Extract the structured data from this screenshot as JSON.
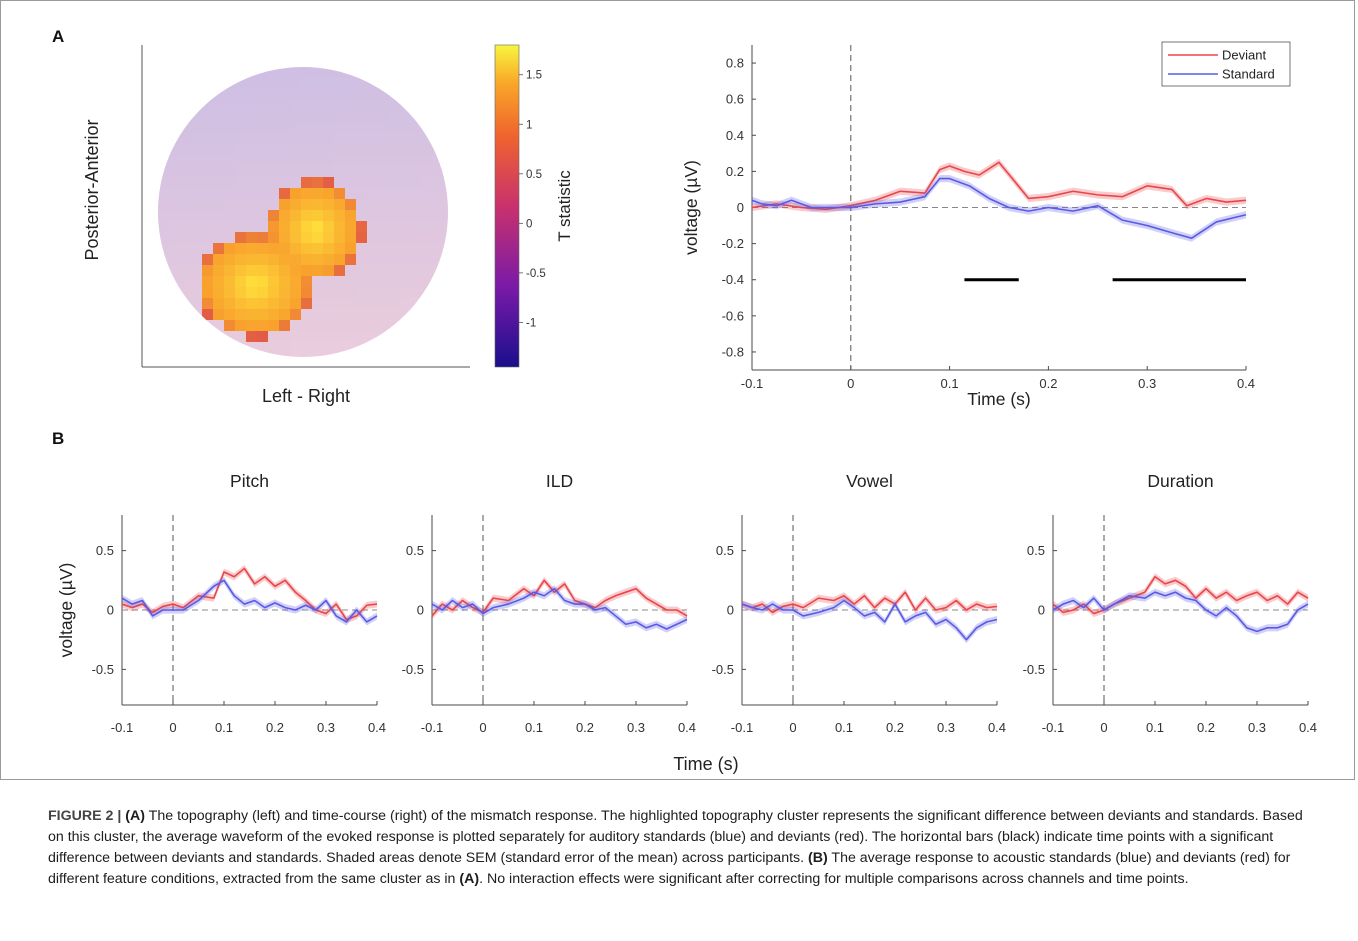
{
  "panelA": {
    "label": "A",
    "topography": {
      "ylabel": "Posterior-Anterior",
      "xlabel": "Left - Right",
      "colorbar_label": "T statistic",
      "colorbar_ticks": [
        "1.5",
        "1",
        "0.5",
        "0",
        "-0.5",
        "-1"
      ],
      "colorbar_tick_values": [
        1.5,
        1,
        0.5,
        0,
        -0.5,
        -1
      ],
      "colorbar_range": [
        -1.45,
        1.8
      ]
    }
  },
  "panelB": {
    "label": "B",
    "shared_xlabel": "Time (s)"
  },
  "chart_data": [
    {
      "type": "line",
      "panel": "A",
      "xlabel": "Time (s)",
      "ylabel": "voltage (µV)",
      "xlim": [
        -0.1,
        0.4
      ],
      "ylim": [
        -0.9,
        0.9
      ],
      "xticks": [
        "-0.1",
        "0",
        "0.1",
        "0.2",
        "0.3",
        "0.4"
      ],
      "yticks": [
        "0.8",
        "0.6",
        "0.4",
        "0.2",
        "0",
        "-0.2",
        "-0.4",
        "-0.6",
        "-0.8"
      ],
      "legend": "top-right",
      "stimulus_onset": 0,
      "significance_bars": [
        [
          0.115,
          0.17
        ],
        [
          0.265,
          0.4
        ]
      ],
      "significance_bar_y": -0.4,
      "series": [
        {
          "name": "Deviant",
          "color": "#e8464a",
          "sem": 0.02,
          "x": [
            -0.1,
            -0.075,
            -0.05,
            -0.025,
            0,
            0.025,
            0.05,
            0.075,
            0.09,
            0.1,
            0.115,
            0.13,
            0.15,
            0.165,
            0.18,
            0.2,
            0.225,
            0.25,
            0.275,
            0.3,
            0.325,
            0.34,
            0.36,
            0.38,
            0.4
          ],
          "y": [
            0.0,
            0.02,
            0.0,
            -0.01,
            0.01,
            0.04,
            0.09,
            0.08,
            0.21,
            0.23,
            0.2,
            0.18,
            0.25,
            0.15,
            0.05,
            0.06,
            0.09,
            0.07,
            0.06,
            0.12,
            0.1,
            0.01,
            0.05,
            0.03,
            0.04
          ]
        },
        {
          "name": "Standard",
          "color": "#5a5ae6",
          "sem": 0.02,
          "x": [
            -0.1,
            -0.09,
            -0.075,
            -0.06,
            -0.04,
            -0.025,
            0,
            0.025,
            0.05,
            0.075,
            0.09,
            0.1,
            0.12,
            0.14,
            0.16,
            0.18,
            0.2,
            0.225,
            0.25,
            0.275,
            0.3,
            0.325,
            0.345,
            0.37,
            0.4
          ],
          "y": [
            0.04,
            0.02,
            0.01,
            0.04,
            0.0,
            0.0,
            0.0,
            0.02,
            0.03,
            0.06,
            0.16,
            0.16,
            0.12,
            0.05,
            0.0,
            -0.02,
            0.0,
            -0.02,
            0.01,
            -0.07,
            -0.1,
            -0.14,
            -0.17,
            -0.08,
            -0.04
          ]
        }
      ]
    },
    {
      "type": "line",
      "panel": "B",
      "title": "Pitch",
      "ylabel": "voltage (µV)",
      "xlim": [
        -0.1,
        0.4
      ],
      "ylim": [
        -0.8,
        0.8
      ],
      "xticks": [
        "-0.1",
        "0",
        "0.1",
        "0.2",
        "0.3",
        "0.4"
      ],
      "yticks": [
        "0.5",
        "0",
        "-0.5"
      ],
      "series": [
        {
          "name": "Deviant",
          "color": "#e8464a",
          "sem": 0.03,
          "x": [
            -0.1,
            -0.08,
            -0.06,
            -0.04,
            -0.02,
            0,
            0.02,
            0.05,
            0.08,
            0.1,
            0.12,
            0.14,
            0.16,
            0.18,
            0.2,
            0.22,
            0.24,
            0.26,
            0.28,
            0.3,
            0.32,
            0.34,
            0.36,
            0.38,
            0.4
          ],
          "y": [
            0.05,
            0.02,
            0.05,
            -0.02,
            0.03,
            0.05,
            0.02,
            0.12,
            0.1,
            0.32,
            0.28,
            0.35,
            0.22,
            0.28,
            0.2,
            0.25,
            0.15,
            0.08,
            0.0,
            -0.03,
            0.05,
            -0.08,
            -0.05,
            0.04,
            0.05
          ]
        },
        {
          "name": "Standard",
          "color": "#5a5ae6",
          "sem": 0.03,
          "x": [
            -0.1,
            -0.08,
            -0.06,
            -0.04,
            -0.02,
            0,
            0.02,
            0.05,
            0.08,
            0.1,
            0.12,
            0.14,
            0.16,
            0.18,
            0.2,
            0.22,
            0.24,
            0.26,
            0.28,
            0.3,
            0.32,
            0.34,
            0.36,
            0.38,
            0.4
          ],
          "y": [
            0.1,
            0.05,
            0.08,
            -0.05,
            0.0,
            0.0,
            0.0,
            0.08,
            0.2,
            0.25,
            0.12,
            0.05,
            0.08,
            0.02,
            0.06,
            0.02,
            0.0,
            0.04,
            0.0,
            0.08,
            -0.05,
            -0.1,
            0.0,
            -0.1,
            -0.05
          ]
        }
      ]
    },
    {
      "type": "line",
      "panel": "B",
      "title": "ILD",
      "xlim": [
        -0.1,
        0.4
      ],
      "ylim": [
        -0.8,
        0.8
      ],
      "xticks": [
        "-0.1",
        "0",
        "0.1",
        "0.2",
        "0.3",
        "0.4"
      ],
      "yticks": [
        "0.5",
        "0",
        "-0.5"
      ],
      "series": [
        {
          "name": "Deviant",
          "color": "#e8464a",
          "sem": 0.03,
          "x": [
            -0.1,
            -0.08,
            -0.06,
            -0.04,
            -0.02,
            0,
            0.02,
            0.05,
            0.08,
            0.1,
            0.12,
            0.14,
            0.16,
            0.18,
            0.2,
            0.22,
            0.24,
            0.26,
            0.28,
            0.3,
            0.32,
            0.34,
            0.36,
            0.38,
            0.4
          ],
          "y": [
            -0.05,
            0.05,
            0.0,
            0.08,
            0.02,
            -0.02,
            0.1,
            0.08,
            0.18,
            0.12,
            0.25,
            0.15,
            0.22,
            0.08,
            0.05,
            0.02,
            0.08,
            0.12,
            0.15,
            0.18,
            0.1,
            0.05,
            0.0,
            0.0,
            -0.05
          ]
        },
        {
          "name": "Standard",
          "color": "#5a5ae6",
          "sem": 0.03,
          "x": [
            -0.1,
            -0.08,
            -0.06,
            -0.04,
            -0.02,
            0,
            0.02,
            0.05,
            0.08,
            0.1,
            0.12,
            0.14,
            0.16,
            0.18,
            0.2,
            0.22,
            0.24,
            0.26,
            0.28,
            0.3,
            0.32,
            0.34,
            0.36,
            0.38,
            0.4
          ],
          "y": [
            0.05,
            0.0,
            0.08,
            0.02,
            0.05,
            -0.03,
            0.02,
            0.05,
            0.1,
            0.15,
            0.12,
            0.18,
            0.08,
            0.05,
            0.05,
            0.0,
            0.02,
            -0.05,
            -0.12,
            -0.1,
            -0.15,
            -0.12,
            -0.16,
            -0.12,
            -0.08
          ]
        }
      ]
    },
    {
      "type": "line",
      "panel": "B",
      "title": "Vowel",
      "xlim": [
        -0.1,
        0.4
      ],
      "ylim": [
        -0.8,
        0.8
      ],
      "xticks": [
        "-0.1",
        "0",
        "0.1",
        "0.2",
        "0.3",
        "0.4"
      ],
      "yticks": [
        "0.5",
        "0",
        "-0.5"
      ],
      "series": [
        {
          "name": "Deviant",
          "color": "#e8464a",
          "sem": 0.03,
          "x": [
            -0.1,
            -0.08,
            -0.06,
            -0.04,
            -0.02,
            0,
            0.02,
            0.05,
            0.08,
            0.1,
            0.12,
            0.14,
            0.16,
            0.18,
            0.2,
            0.22,
            0.24,
            0.26,
            0.28,
            0.3,
            0.32,
            0.34,
            0.36,
            0.38,
            0.4
          ],
          "y": [
            0.05,
            0.02,
            0.05,
            -0.02,
            0.03,
            0.05,
            0.02,
            0.1,
            0.08,
            0.12,
            0.05,
            0.12,
            0.02,
            0.1,
            0.05,
            0.15,
            0.0,
            0.1,
            0.0,
            0.02,
            0.08,
            0.0,
            0.05,
            0.02,
            0.03
          ]
        },
        {
          "name": "Standard",
          "color": "#5a5ae6",
          "sem": 0.03,
          "x": [
            -0.1,
            -0.08,
            -0.06,
            -0.04,
            -0.02,
            0,
            0.02,
            0.05,
            0.08,
            0.1,
            0.12,
            0.14,
            0.16,
            0.18,
            0.2,
            0.22,
            0.24,
            0.26,
            0.28,
            0.3,
            0.32,
            0.34,
            0.36,
            0.38,
            0.4
          ],
          "y": [
            0.05,
            0.02,
            0.0,
            0.05,
            0.0,
            0.0,
            -0.05,
            -0.02,
            0.02,
            0.08,
            0.02,
            -0.05,
            -0.02,
            -0.1,
            0.05,
            -0.1,
            -0.05,
            -0.02,
            -0.12,
            -0.08,
            -0.15,
            -0.25,
            -0.15,
            -0.1,
            -0.08
          ]
        }
      ]
    },
    {
      "type": "line",
      "panel": "B",
      "title": "Duration",
      "xlim": [
        -0.1,
        0.4
      ],
      "ylim": [
        -0.8,
        0.8
      ],
      "xticks": [
        "-0.1",
        "0",
        "0.1",
        "0.2",
        "0.3",
        "0.4"
      ],
      "yticks": [
        "0.5",
        "0",
        "-0.5"
      ],
      "series": [
        {
          "name": "Deviant",
          "color": "#e8464a",
          "sem": 0.03,
          "x": [
            -0.1,
            -0.08,
            -0.06,
            -0.04,
            -0.02,
            0,
            0.02,
            0.05,
            0.08,
            0.1,
            0.12,
            0.14,
            0.16,
            0.18,
            0.2,
            0.22,
            0.24,
            0.26,
            0.28,
            0.3,
            0.32,
            0.34,
            0.36,
            0.38,
            0.4
          ],
          "y": [
            0.05,
            -0.02,
            0.0,
            0.05,
            -0.03,
            0.0,
            0.05,
            0.1,
            0.15,
            0.28,
            0.22,
            0.25,
            0.2,
            0.1,
            0.18,
            0.1,
            0.15,
            0.08,
            0.12,
            0.15,
            0.08,
            0.12,
            0.05,
            0.15,
            0.1
          ]
        },
        {
          "name": "Standard",
          "color": "#5a5ae6",
          "sem": 0.03,
          "x": [
            -0.1,
            -0.08,
            -0.06,
            -0.04,
            -0.02,
            0,
            0.02,
            0.05,
            0.08,
            0.1,
            0.12,
            0.14,
            0.16,
            0.18,
            0.2,
            0.22,
            0.24,
            0.26,
            0.28,
            0.3,
            0.32,
            0.34,
            0.36,
            0.38,
            0.4
          ],
          "y": [
            0.0,
            0.05,
            0.08,
            0.02,
            0.1,
            0.0,
            0.05,
            0.12,
            0.1,
            0.15,
            0.12,
            0.15,
            0.1,
            0.08,
            0.0,
            -0.05,
            0.02,
            -0.05,
            -0.15,
            -0.18,
            -0.15,
            -0.15,
            -0.12,
            0.0,
            0.05
          ]
        }
      ]
    }
  ],
  "caption": {
    "figure_label": "FIGURE 2 |",
    "parts": [
      {
        "b": true,
        "t": "(A)"
      },
      {
        "b": false,
        "t": " The topography (left) and time-course (right) of the mismatch response. The highlighted topography cluster represents the significant difference between deviants and standards. Based on this cluster, the average waveform of the evoked response is plotted separately for auditory standards (blue) and deviants (red). The horizontal bars (black) indicate time points with a significant difference between deviants and standards. Shaded areas denote SEM (standard error of the mean) across participants. "
      },
      {
        "b": true,
        "t": "(B)"
      },
      {
        "b": false,
        "t": " The average response to acoustic standards (blue) and deviants (red) for different feature conditions, extracted from the same cluster as in "
      },
      {
        "b": true,
        "t": "(A)"
      },
      {
        "b": false,
        "t": ". No interaction effects were significant after correcting for multiple comparisons across channels and time points."
      }
    ]
  },
  "colors": {
    "deviant": "#e8464a",
    "standard": "#5a5ae6",
    "axis": "#4a4a4a",
    "baseline": "#888888"
  }
}
